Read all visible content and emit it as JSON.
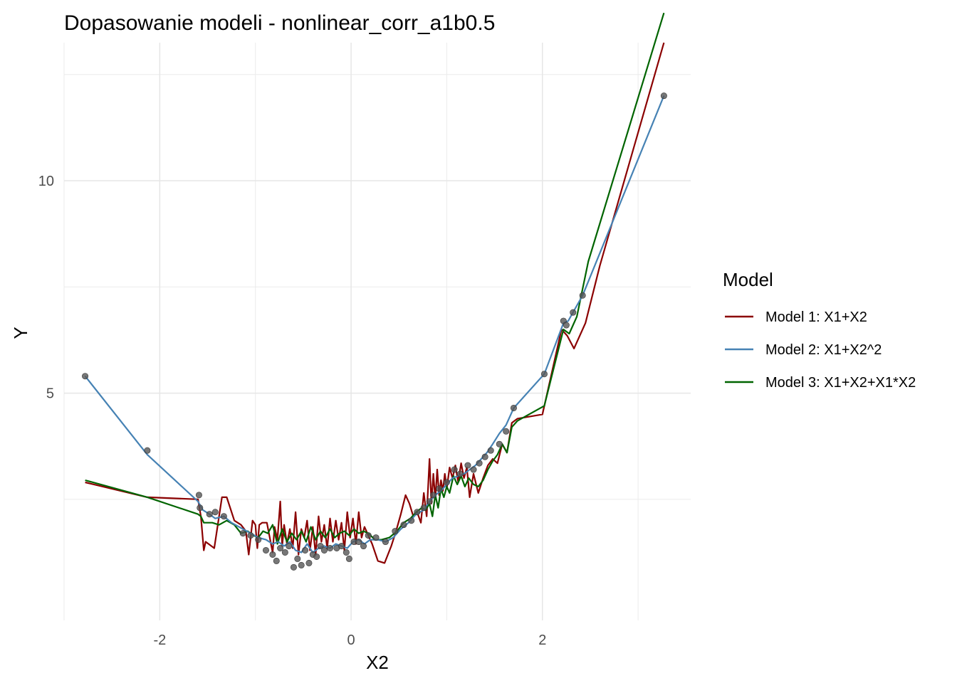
{
  "chart_data": {
    "type": "line",
    "title": "Dopasowanie modeli - nonlinear_corr_a1b0.5",
    "xlabel": "X2",
    "ylabel": "Y",
    "xlim": [
      -3.0,
      3.55
    ],
    "ylim": [
      -0.35,
      13.25
    ],
    "xticks": [
      -2,
      0,
      2
    ],
    "yticks": [
      5,
      10
    ],
    "grid": true,
    "legend": {
      "title": "Model",
      "position": "right"
    },
    "points": {
      "color": "#555555",
      "x": [
        -2.78,
        -2.13,
        -1.59,
        -1.58,
        -1.48,
        -1.42,
        -1.33,
        -1.13,
        -1.05,
        -0.97,
        -0.89,
        -0.82,
        -0.78,
        -0.74,
        -0.69,
        -0.65,
        -0.6,
        -0.56,
        -0.52,
        -0.48,
        -0.44,
        -0.4,
        -0.36,
        -0.32,
        -0.28,
        -0.22,
        -0.15,
        -0.1,
        -0.05,
        -0.02,
        0.03,
        0.08,
        0.13,
        0.18,
        0.26,
        0.36,
        0.46,
        0.55,
        0.63,
        0.69,
        0.76,
        0.82,
        0.86,
        0.92,
        1.0,
        1.08,
        1.14,
        1.22,
        1.28,
        1.34,
        1.4,
        1.46,
        1.55,
        1.62,
        1.7,
        2.02,
        2.22,
        2.25,
        2.32,
        2.42,
        3.27
      ],
      "y": [
        5.4,
        3.65,
        2.6,
        2.3,
        2.15,
        2.2,
        2.1,
        1.7,
        1.65,
        1.55,
        1.3,
        1.2,
        1.05,
        1.35,
        1.25,
        1.4,
        0.9,
        1.1,
        0.95,
        1.3,
        1.0,
        1.2,
        1.15,
        1.4,
        1.3,
        1.35,
        1.35,
        1.4,
        1.25,
        1.1,
        1.5,
        1.5,
        1.4,
        1.65,
        1.6,
        1.5,
        1.75,
        1.9,
        2.0,
        2.2,
        2.3,
        2.45,
        2.6,
        2.75,
        2.9,
        3.2,
        3.1,
        3.3,
        3.2,
        3.35,
        3.5,
        3.65,
        3.8,
        4.1,
        4.65,
        5.45,
        6.7,
        6.6,
        6.9,
        7.3,
        12.0
      ]
    },
    "series": [
      {
        "name": "Model 1: X1+X2",
        "color": "#8b0000",
        "x": [
          -2.78,
          -2.13,
          -1.6,
          -1.57,
          -1.54,
          -1.52,
          -1.43,
          -1.35,
          -1.3,
          -1.22,
          -1.15,
          -1.1,
          -1.07,
          -1.03,
          -1.0,
          -0.98,
          -0.96,
          -0.93,
          -0.88,
          -0.82,
          -0.8,
          -0.77,
          -0.74,
          -0.72,
          -0.7,
          -0.67,
          -0.64,
          -0.61,
          -0.58,
          -0.55,
          -0.52,
          -0.49,
          -0.46,
          -0.43,
          -0.4,
          -0.37,
          -0.34,
          -0.31,
          -0.28,
          -0.25,
          -0.22,
          -0.19,
          -0.16,
          -0.13,
          -0.1,
          -0.07,
          -0.04,
          -0.01,
          0.02,
          0.05,
          0.08,
          0.11,
          0.14,
          0.17,
          0.22,
          0.28,
          0.35,
          0.42,
          0.47,
          0.52,
          0.57,
          0.61,
          0.65,
          0.69,
          0.73,
          0.76,
          0.79,
          0.82,
          0.84,
          0.86,
          0.88,
          0.9,
          0.92,
          0.94,
          0.96,
          0.98,
          1.0,
          1.03,
          1.06,
          1.09,
          1.12,
          1.15,
          1.18,
          1.21,
          1.24,
          1.28,
          1.33,
          1.38,
          1.43,
          1.48,
          1.53,
          1.58,
          1.63,
          1.68,
          1.74,
          2.0,
          2.2,
          2.26,
          2.33,
          2.45,
          2.6,
          3.27
        ],
        "y": [
          2.9,
          2.55,
          2.5,
          2.1,
          1.3,
          1.5,
          1.35,
          2.55,
          2.55,
          2.0,
          1.9,
          1.75,
          1.2,
          2.0,
          1.9,
          1.35,
          1.9,
          1.95,
          1.95,
          1.25,
          1.85,
          1.55,
          2.45,
          1.4,
          1.9,
          1.45,
          1.8,
          1.35,
          2.2,
          1.2,
          1.8,
          1.6,
          2.0,
          1.3,
          1.85,
          1.2,
          2.1,
          1.5,
          1.9,
          1.35,
          2.05,
          1.5,
          2.0,
          1.55,
          1.95,
          1.3,
          2.2,
          1.6,
          2.05,
          1.45,
          2.2,
          1.6,
          1.85,
          1.7,
          1.45,
          1.05,
          1.0,
          1.4,
          1.75,
          2.15,
          2.6,
          2.4,
          2.1,
          2.2,
          1.95,
          2.65,
          2.1,
          3.45,
          2.4,
          3.1,
          2.5,
          3.2,
          2.6,
          2.95,
          2.7,
          3.1,
          2.75,
          3.25,
          3.0,
          3.3,
          2.9,
          3.35,
          3.0,
          3.25,
          2.55,
          3.1,
          2.65,
          3.0,
          3.3,
          3.45,
          3.35,
          3.8,
          3.6,
          4.3,
          4.4,
          4.5,
          6.5,
          6.35,
          6.05,
          6.65,
          8.0,
          13.25
        ]
      },
      {
        "name": "Model 2: X1+X2^2",
        "color": "#4682b4",
        "x": [
          -2.78,
          -2.13,
          -1.6,
          -1.55,
          -1.48,
          -1.42,
          -1.33,
          -1.25,
          -1.13,
          -1.05,
          -0.97,
          -0.89,
          -0.82,
          -0.76,
          -0.7,
          -0.64,
          -0.58,
          -0.52,
          -0.46,
          -0.4,
          -0.34,
          -0.28,
          -0.22,
          -0.16,
          -0.1,
          -0.04,
          0.02,
          0.08,
          0.14,
          0.2,
          0.28,
          0.36,
          0.44,
          0.52,
          0.6,
          0.68,
          0.76,
          0.82,
          0.88,
          0.94,
          1.0,
          1.06,
          1.12,
          1.18,
          1.24,
          1.3,
          1.36,
          1.42,
          1.48,
          1.55,
          1.62,
          1.7,
          2.02,
          2.22,
          2.27,
          2.32,
          2.42,
          3.27
        ],
        "y": [
          5.4,
          3.55,
          2.45,
          2.25,
          2.15,
          2.05,
          2.1,
          1.95,
          1.8,
          1.7,
          1.6,
          1.55,
          1.45,
          1.5,
          1.4,
          1.5,
          1.3,
          1.25,
          1.45,
          1.25,
          1.35,
          1.4,
          1.35,
          1.45,
          1.4,
          1.35,
          1.5,
          1.55,
          1.45,
          1.55,
          1.55,
          1.5,
          1.6,
          1.8,
          1.95,
          2.15,
          2.25,
          2.45,
          2.6,
          2.7,
          2.85,
          3.0,
          3.05,
          3.1,
          3.2,
          3.3,
          3.45,
          3.6,
          3.8,
          4.05,
          4.25,
          4.65,
          5.45,
          6.65,
          6.7,
          6.9,
          7.3,
          12.0
        ]
      },
      {
        "name": "Model 3: X1+X2+X1*X2",
        "color": "#006400",
        "x": [
          -2.78,
          -2.13,
          -1.6,
          -1.57,
          -1.54,
          -1.45,
          -1.38,
          -1.3,
          -1.22,
          -1.15,
          -1.08,
          -1.02,
          -0.97,
          -0.92,
          -0.87,
          -0.82,
          -0.77,
          -0.72,
          -0.67,
          -0.62,
          -0.57,
          -0.52,
          -0.47,
          -0.42,
          -0.37,
          -0.32,
          -0.27,
          -0.22,
          -0.17,
          -0.12,
          -0.07,
          -0.02,
          0.03,
          0.08,
          0.13,
          0.18,
          0.25,
          0.32,
          0.4,
          0.48,
          0.55,
          0.62,
          0.68,
          0.74,
          0.78,
          0.82,
          0.85,
          0.88,
          0.91,
          0.94,
          0.97,
          1.0,
          1.03,
          1.07,
          1.11,
          1.15,
          1.19,
          1.23,
          1.28,
          1.33,
          1.38,
          1.43,
          1.48,
          1.53,
          1.58,
          1.63,
          1.68,
          1.74,
          2.02,
          2.22,
          2.28,
          2.36,
          2.48,
          3.27
        ],
        "y": [
          2.95,
          2.55,
          2.15,
          2.1,
          1.95,
          1.95,
          1.9,
          2.0,
          1.9,
          1.7,
          1.75,
          1.65,
          1.6,
          1.75,
          1.7,
          1.9,
          1.45,
          1.8,
          1.5,
          1.7,
          1.55,
          1.75,
          1.5,
          1.85,
          1.55,
          1.75,
          1.6,
          1.8,
          1.6,
          1.7,
          1.75,
          1.65,
          1.8,
          1.7,
          1.75,
          1.7,
          1.55,
          1.55,
          1.6,
          1.75,
          1.95,
          2.05,
          2.2,
          2.3,
          2.25,
          2.4,
          2.1,
          2.6,
          2.3,
          2.75,
          2.55,
          2.8,
          2.65,
          3.05,
          2.85,
          3.05,
          2.8,
          3.0,
          2.85,
          2.8,
          2.95,
          3.2,
          3.4,
          3.55,
          3.8,
          3.6,
          4.2,
          4.35,
          4.7,
          6.5,
          6.4,
          6.8,
          8.1,
          13.95
        ]
      }
    ]
  }
}
